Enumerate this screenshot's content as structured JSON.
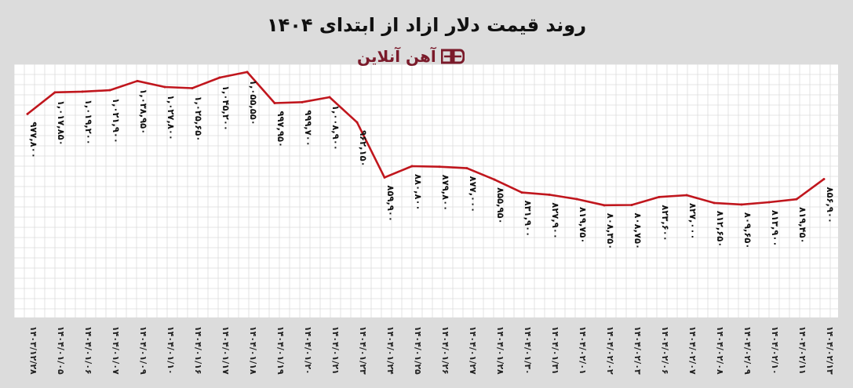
{
  "chart_data": {
    "type": "line",
    "title": "روند قیمت دلار ازاد از ابتدای ۱۴۰۴",
    "brand": "آهن آنلاین",
    "categories": [
      "۱۴۰۳/۱۲/۲۸",
      "۱۴۰۴/۰۱/۰۵",
      "۱۴۰۴/۰۱/۰۶",
      "۱۴۰۴/۰۱/۰۷",
      "۱۴۰۴/۰۱/۰۹",
      "۱۴۰۴/۰۱/۱۰",
      "۱۴۰۴/۰۱/۱۶",
      "۱۴۰۴/۰۱/۱۷",
      "۱۴۰۴/۰۱/۱۸",
      "۱۴۰۴/۰۱/۱۹",
      "۱۴۰۴/۰۱/۲۰",
      "۱۴۰۴/۰۱/۲۱",
      "۱۴۰۴/۰۱/۲۳",
      "۱۴۰۴/۰۱/۲۴",
      "۱۴۰۴/۰۱/۲۵",
      "۱۴۰۴/۰۱/۲۶",
      "۱۴۰۴/۰۱/۲۷",
      "۱۴۰۴/۰۱/۲۸",
      "۱۴۰۴/۰۱/۳۰",
      "۱۴۰۴/۰۱/۳۱",
      "۱۴۰۴/۰۲/۰۱",
      "۱۴۰۴/۰۲/۰۲",
      "۱۴۰۴/۰۲/۰۳",
      "۱۴۰۴/۰۲/۰۶",
      "۱۴۰۴/۰۲/۰۷",
      "۱۴۰۴/۰۲/۰۸",
      "۱۴۰۴/۰۲/۰۹",
      "۱۴۰۴/۰۲/۱۰",
      "۱۴۰۴/۰۲/۱۱",
      "۱۴۰۴/۰۲/۱۳"
    ],
    "values": [
      977800,
      1017850,
      1019200,
      1021900,
      1038950,
      1027800,
      1025650,
      1045200,
      1055550,
      997950,
      999700,
      1008900,
      962150,
      859900,
      880800,
      879800,
      877000,
      855950,
      831900,
      827900,
      819750,
      808350,
      808750,
      823600,
      827000,
      812650,
      809650,
      813900,
      819450,
      856900
    ],
    "value_labels": [
      "۹۷۷,۸۰۰",
      "۱,۰۱۷,۸۵۰",
      "۱,۰۱۹,۲۰۰",
      "۱,۰۲۱,۹۰۰",
      "۱,۰۳۸,۹۵۰",
      "۱,۰۲۷,۸۰۰",
      "۱,۰۲۵,۶۵۰",
      "۱,۰۴۵,۲۰۰",
      "۱,۰۵۵,۵۵۰",
      "۹۹۷,۹۵۰",
      "۹۹۹,۷۰۰",
      "۱,۰۰۸,۹۰۰",
      "۹۶۲,۱۵۰",
      "۸۵۹,۹۰۰",
      "۸۸۰,۸۰۰",
      "۸۷۹,۸۰۰",
      "۸۷۷,۰۰۰",
      "۸۵۵,۹۵۰",
      "۸۳۱,۹۰۰",
      "۸۲۷,۹۰۰",
      "۸۱۹,۷۵۰",
      "۸۰۸,۳۵۰",
      "۸۰۸,۷۵۰",
      "۸۲۳,۶۰۰",
      "۸۲۷,۰۰۰",
      "۸۱۲,۶۵۰",
      "۸۰۹,۶۵۰",
      "۸۱۳,۹۰۰",
      "۸۱۹,۴۵۰",
      "۸۵۶,۹۰۰"
    ],
    "ylim": [
      600000,
      1070000
    ],
    "grid": true,
    "line_color": "#c0161d",
    "grid_color": "#dcdcdc",
    "plot_bg": "#ffffff",
    "brand_color": "#7a1a2a"
  }
}
